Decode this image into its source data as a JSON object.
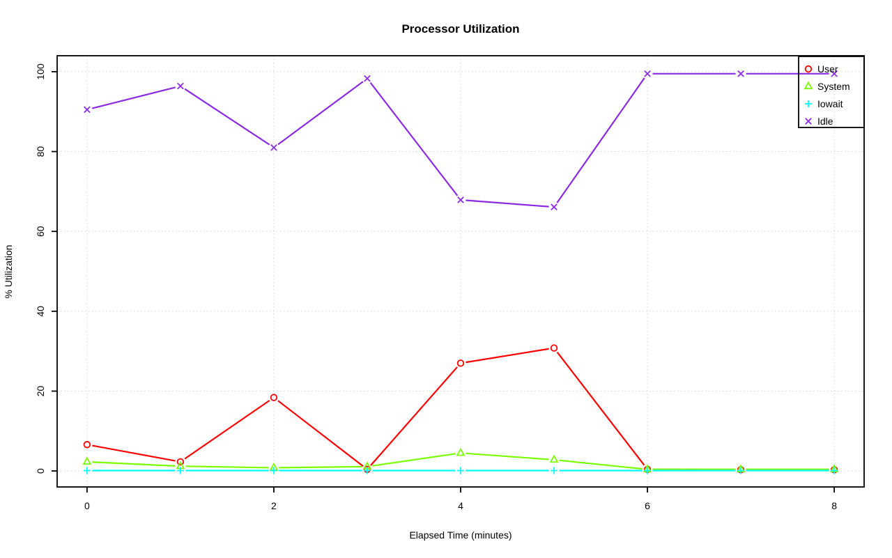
{
  "chart_data": {
    "type": "line",
    "title": "Processor Utilization",
    "xlabel": "Elapsed Time (minutes)",
    "ylabel": "% Utilization",
    "x": [
      0,
      1,
      2,
      3,
      4,
      5,
      6,
      7,
      8
    ],
    "xlim": [
      0,
      8
    ],
    "ylim": [
      0,
      100
    ],
    "x_ticks": [
      0,
      2,
      4,
      6,
      8
    ],
    "y_ticks": [
      0,
      20,
      40,
      60,
      80,
      100
    ],
    "grid": true,
    "grid_style": "dotted",
    "grid_color": "#d3d3d3",
    "axis_color": "#000000",
    "legend_position": "top-right",
    "series": [
      {
        "name": "User",
        "color": "#ff0000",
        "marker": "circle",
        "values": [
          6.6,
          2.3,
          18.4,
          0.4,
          27.0,
          30.8,
          0.4,
          0.3,
          0.3
        ]
      },
      {
        "name": "System",
        "color": "#7cfc00",
        "marker": "triangle",
        "values": [
          2.3,
          1.2,
          0.8,
          1.1,
          4.5,
          2.8,
          0.4,
          0.4,
          0.4
        ]
      },
      {
        "name": "Iowait",
        "color": "#00ffff",
        "marker": "plus",
        "values": [
          0.1,
          0.1,
          0.1,
          0.1,
          0.1,
          0.1,
          0.1,
          0.1,
          0.1
        ]
      },
      {
        "name": "Idle",
        "color": "#8a2be2",
        "marker": "x",
        "values": [
          90.5,
          96.4,
          81.0,
          98.3,
          67.9,
          66.1,
          99.5,
          99.5,
          99.5
        ]
      }
    ]
  }
}
